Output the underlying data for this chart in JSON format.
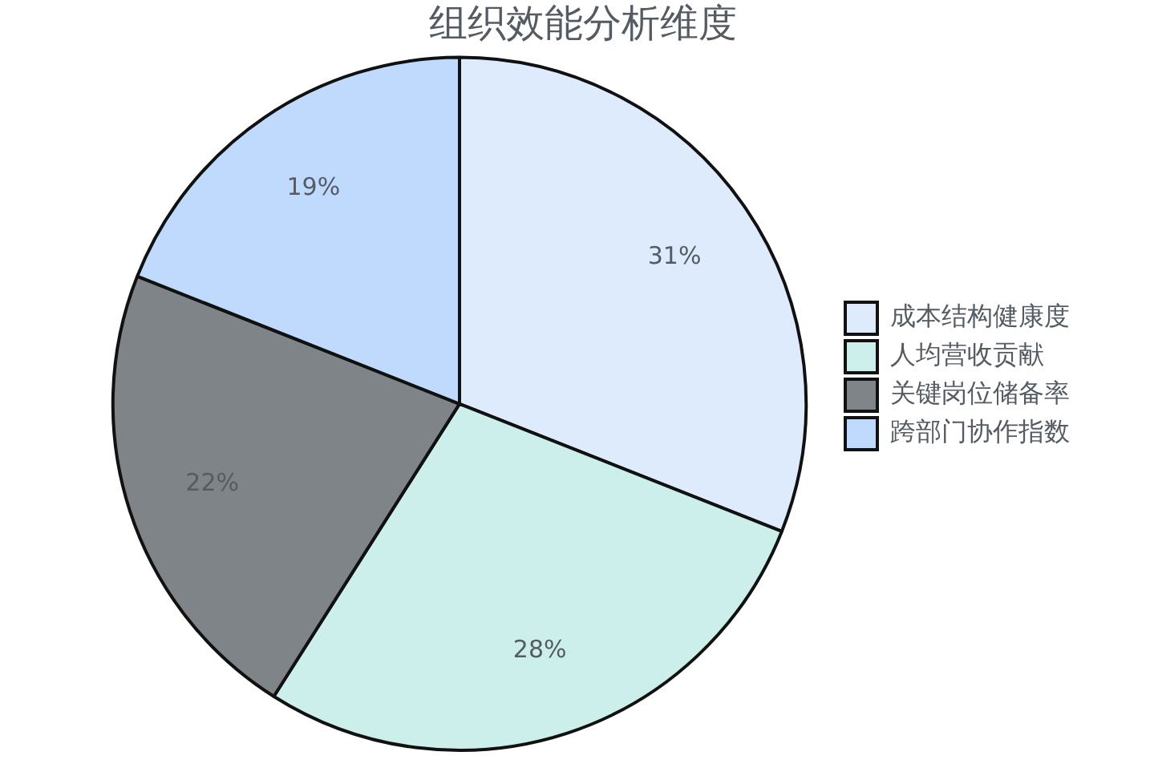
{
  "chart_data": {
    "type": "pie",
    "title": "组织效能分析维度",
    "categories": [
      "成本结构健康度",
      "人均营收贡献",
      "关键岗位储备率",
      "跨部门协作指数"
    ],
    "values": [
      31,
      28,
      22,
      19
    ],
    "colors": [
      "#deebfd",
      "#cdefec",
      "#7f8489",
      "#bfdafd"
    ],
    "value_labels": [
      "31%",
      "28%",
      "22%",
      "19%"
    ],
    "legend": "right"
  }
}
